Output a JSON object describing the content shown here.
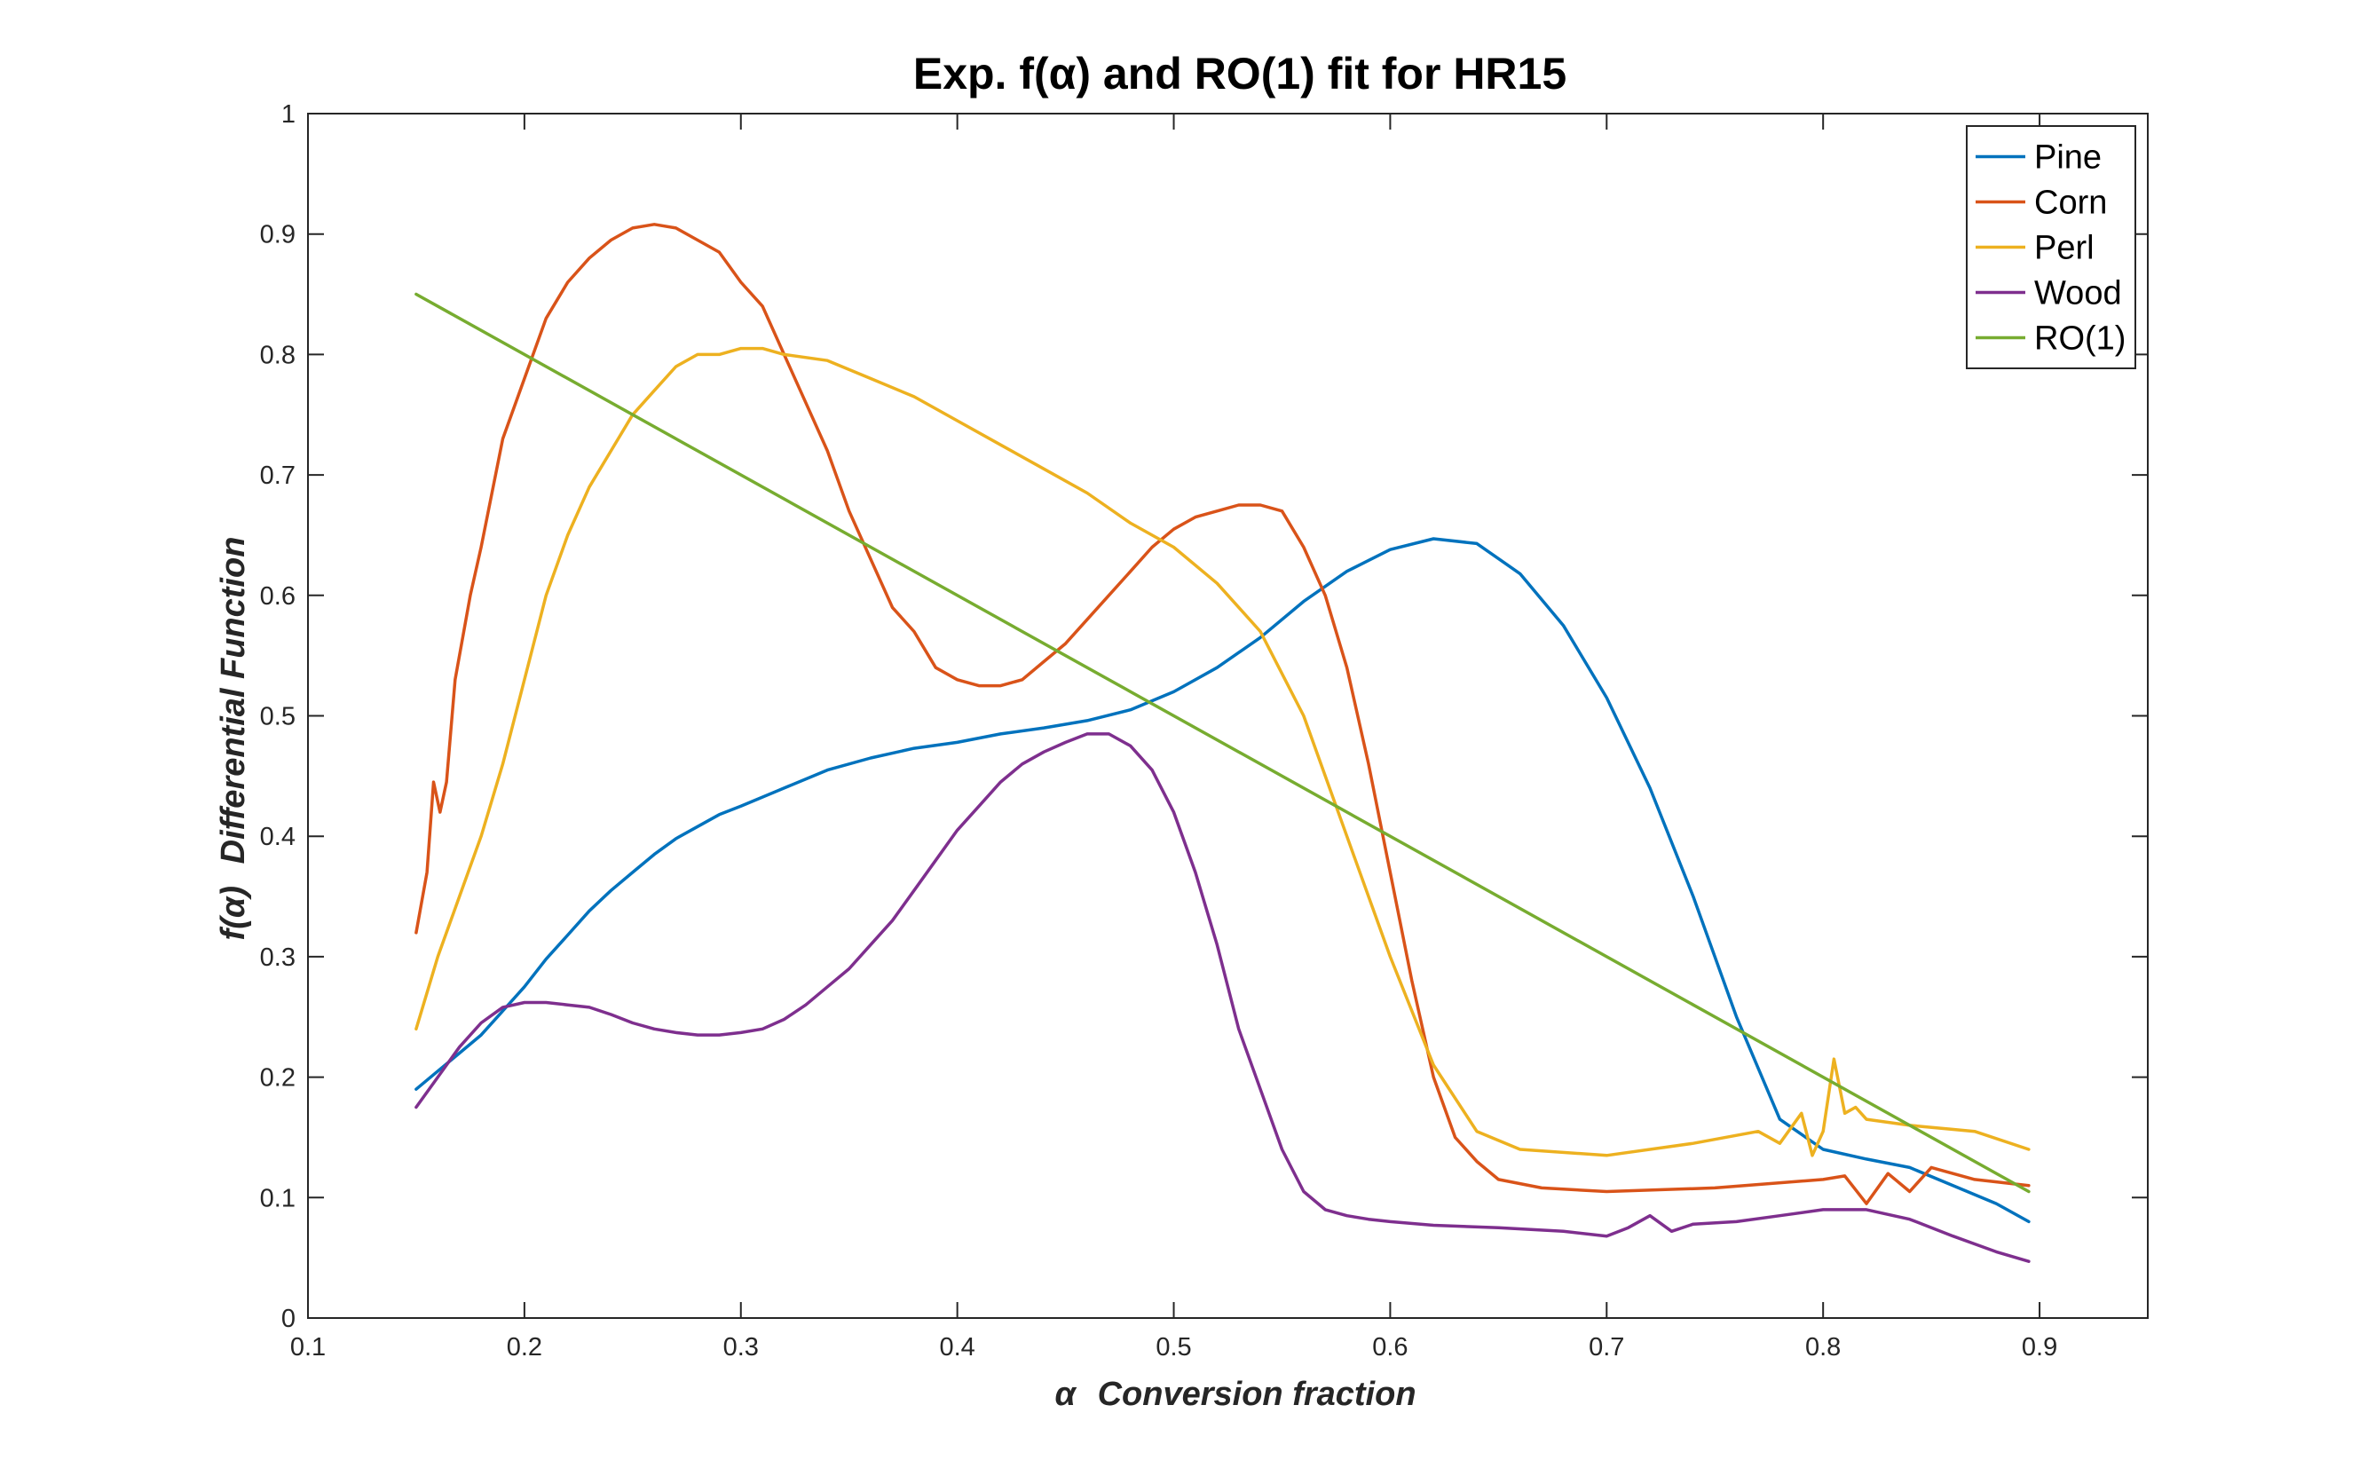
{
  "chart_data": {
    "type": "line",
    "title": "Exp. f(α) and RO(1) fit for HR15",
    "xlabel_symbol": "α",
    "xlabel": "Conversion fraction",
    "ylabel_symbol": "f(α)",
    "ylabel": "Differential Function",
    "xlim": [
      0.1,
      0.95
    ],
    "ylim": [
      0,
      1
    ],
    "xticks": [
      0.1,
      0.2,
      0.3,
      0.4,
      0.5,
      0.6,
      0.7,
      0.8,
      0.9
    ],
    "xtick_labels": [
      "0.1",
      "0.2",
      "0.3",
      "0.4",
      "0.5",
      "0.6",
      "0.7",
      "0.8",
      "0.9"
    ],
    "yticks": [
      0,
      0.1,
      0.2,
      0.3,
      0.4,
      0.5,
      0.6,
      0.7,
      0.8,
      0.9,
      1
    ],
    "ytick_labels": [
      "0",
      "0.1",
      "0.2",
      "0.3",
      "0.4",
      "0.5",
      "0.6",
      "0.7",
      "0.8",
      "0.9",
      "1"
    ],
    "grid": false,
    "legend_position": "top-right",
    "series": [
      {
        "name": "Pine",
        "color": "#0072BD",
        "x": [
          0.15,
          0.16,
          0.17,
          0.18,
          0.19,
          0.2,
          0.21,
          0.22,
          0.23,
          0.24,
          0.25,
          0.26,
          0.27,
          0.28,
          0.29,
          0.3,
          0.32,
          0.34,
          0.36,
          0.38,
          0.4,
          0.42,
          0.44,
          0.46,
          0.48,
          0.5,
          0.52,
          0.54,
          0.56,
          0.58,
          0.6,
          0.62,
          0.64,
          0.66,
          0.68,
          0.7,
          0.72,
          0.74,
          0.76,
          0.78,
          0.8,
          0.82,
          0.84,
          0.86,
          0.88,
          0.895
        ],
        "y": [
          0.19,
          0.205,
          0.22,
          0.235,
          0.255,
          0.275,
          0.298,
          0.318,
          0.338,
          0.355,
          0.37,
          0.385,
          0.398,
          0.408,
          0.418,
          0.425,
          0.44,
          0.455,
          0.465,
          0.473,
          0.478,
          0.485,
          0.49,
          0.496,
          0.505,
          0.52,
          0.54,
          0.565,
          0.595,
          0.62,
          0.638,
          0.647,
          0.643,
          0.618,
          0.575,
          0.515,
          0.44,
          0.35,
          0.25,
          0.165,
          0.14,
          0.132,
          0.125,
          0.11,
          0.095,
          0.08
        ]
      },
      {
        "name": "Corn",
        "color": "#D95319",
        "x": [
          0.15,
          0.155,
          0.158,
          0.161,
          0.164,
          0.168,
          0.175,
          0.18,
          0.19,
          0.2,
          0.21,
          0.22,
          0.23,
          0.24,
          0.25,
          0.26,
          0.27,
          0.28,
          0.29,
          0.3,
          0.31,
          0.32,
          0.33,
          0.34,
          0.35,
          0.36,
          0.37,
          0.38,
          0.39,
          0.4,
          0.41,
          0.42,
          0.43,
          0.44,
          0.45,
          0.46,
          0.47,
          0.48,
          0.49,
          0.5,
          0.51,
          0.52,
          0.53,
          0.54,
          0.55,
          0.56,
          0.57,
          0.58,
          0.59,
          0.6,
          0.61,
          0.62,
          0.63,
          0.64,
          0.65,
          0.67,
          0.7,
          0.75,
          0.8,
          0.81,
          0.82,
          0.83,
          0.84,
          0.85,
          0.87,
          0.895
        ],
        "y": [
          0.32,
          0.37,
          0.445,
          0.42,
          0.445,
          0.53,
          0.6,
          0.64,
          0.73,
          0.78,
          0.83,
          0.86,
          0.88,
          0.895,
          0.905,
          0.908,
          0.905,
          0.895,
          0.885,
          0.86,
          0.84,
          0.8,
          0.76,
          0.72,
          0.67,
          0.63,
          0.59,
          0.57,
          0.54,
          0.53,
          0.525,
          0.525,
          0.53,
          0.545,
          0.56,
          0.58,
          0.6,
          0.62,
          0.64,
          0.655,
          0.665,
          0.67,
          0.675,
          0.675,
          0.67,
          0.64,
          0.6,
          0.54,
          0.46,
          0.37,
          0.28,
          0.2,
          0.15,
          0.13,
          0.115,
          0.108,
          0.105,
          0.108,
          0.115,
          0.118,
          0.095,
          0.12,
          0.105,
          0.125,
          0.115,
          0.11
        ]
      },
      {
        "name": "Perl",
        "color": "#EDB120",
        "x": [
          0.15,
          0.16,
          0.17,
          0.18,
          0.19,
          0.2,
          0.21,
          0.22,
          0.23,
          0.24,
          0.25,
          0.26,
          0.27,
          0.28,
          0.29,
          0.3,
          0.31,
          0.32,
          0.34,
          0.36,
          0.38,
          0.4,
          0.42,
          0.44,
          0.46,
          0.48,
          0.5,
          0.52,
          0.54,
          0.56,
          0.58,
          0.6,
          0.62,
          0.64,
          0.66,
          0.7,
          0.74,
          0.77,
          0.78,
          0.79,
          0.795,
          0.8,
          0.805,
          0.81,
          0.815,
          0.82,
          0.84,
          0.87,
          0.895
        ],
        "y": [
          0.24,
          0.3,
          0.35,
          0.4,
          0.46,
          0.53,
          0.6,
          0.65,
          0.69,
          0.72,
          0.75,
          0.77,
          0.79,
          0.8,
          0.8,
          0.805,
          0.805,
          0.8,
          0.795,
          0.78,
          0.765,
          0.745,
          0.725,
          0.705,
          0.685,
          0.66,
          0.64,
          0.61,
          0.57,
          0.5,
          0.4,
          0.3,
          0.21,
          0.155,
          0.14,
          0.135,
          0.145,
          0.155,
          0.145,
          0.17,
          0.135,
          0.155,
          0.215,
          0.17,
          0.175,
          0.165,
          0.16,
          0.155,
          0.14
        ]
      },
      {
        "name": "Wood",
        "color": "#7E2F8E",
        "x": [
          0.15,
          0.16,
          0.17,
          0.18,
          0.19,
          0.2,
          0.21,
          0.22,
          0.23,
          0.24,
          0.25,
          0.26,
          0.27,
          0.28,
          0.29,
          0.3,
          0.31,
          0.32,
          0.33,
          0.34,
          0.35,
          0.36,
          0.37,
          0.38,
          0.39,
          0.4,
          0.41,
          0.42,
          0.43,
          0.44,
          0.45,
          0.46,
          0.47,
          0.48,
          0.49,
          0.5,
          0.51,
          0.52,
          0.53,
          0.54,
          0.55,
          0.56,
          0.57,
          0.58,
          0.59,
          0.6,
          0.62,
          0.65,
          0.68,
          0.7,
          0.71,
          0.72,
          0.73,
          0.74,
          0.76,
          0.78,
          0.8,
          0.82,
          0.84,
          0.86,
          0.88,
          0.895
        ],
        "y": [
          0.175,
          0.2,
          0.225,
          0.245,
          0.258,
          0.262,
          0.262,
          0.26,
          0.258,
          0.252,
          0.245,
          0.24,
          0.237,
          0.235,
          0.235,
          0.237,
          0.24,
          0.248,
          0.26,
          0.275,
          0.29,
          0.31,
          0.33,
          0.355,
          0.38,
          0.405,
          0.425,
          0.445,
          0.46,
          0.47,
          0.478,
          0.485,
          0.485,
          0.475,
          0.455,
          0.42,
          0.37,
          0.31,
          0.24,
          0.19,
          0.14,
          0.105,
          0.09,
          0.085,
          0.082,
          0.08,
          0.077,
          0.075,
          0.072,
          0.068,
          0.075,
          0.085,
          0.072,
          0.078,
          0.08,
          0.085,
          0.09,
          0.09,
          0.082,
          0.068,
          0.055,
          0.047
        ]
      },
      {
        "name": "RO(1)",
        "color": "#77AC30",
        "x": [
          0.15,
          0.895
        ],
        "y": [
          0.85,
          0.105
        ]
      }
    ]
  }
}
